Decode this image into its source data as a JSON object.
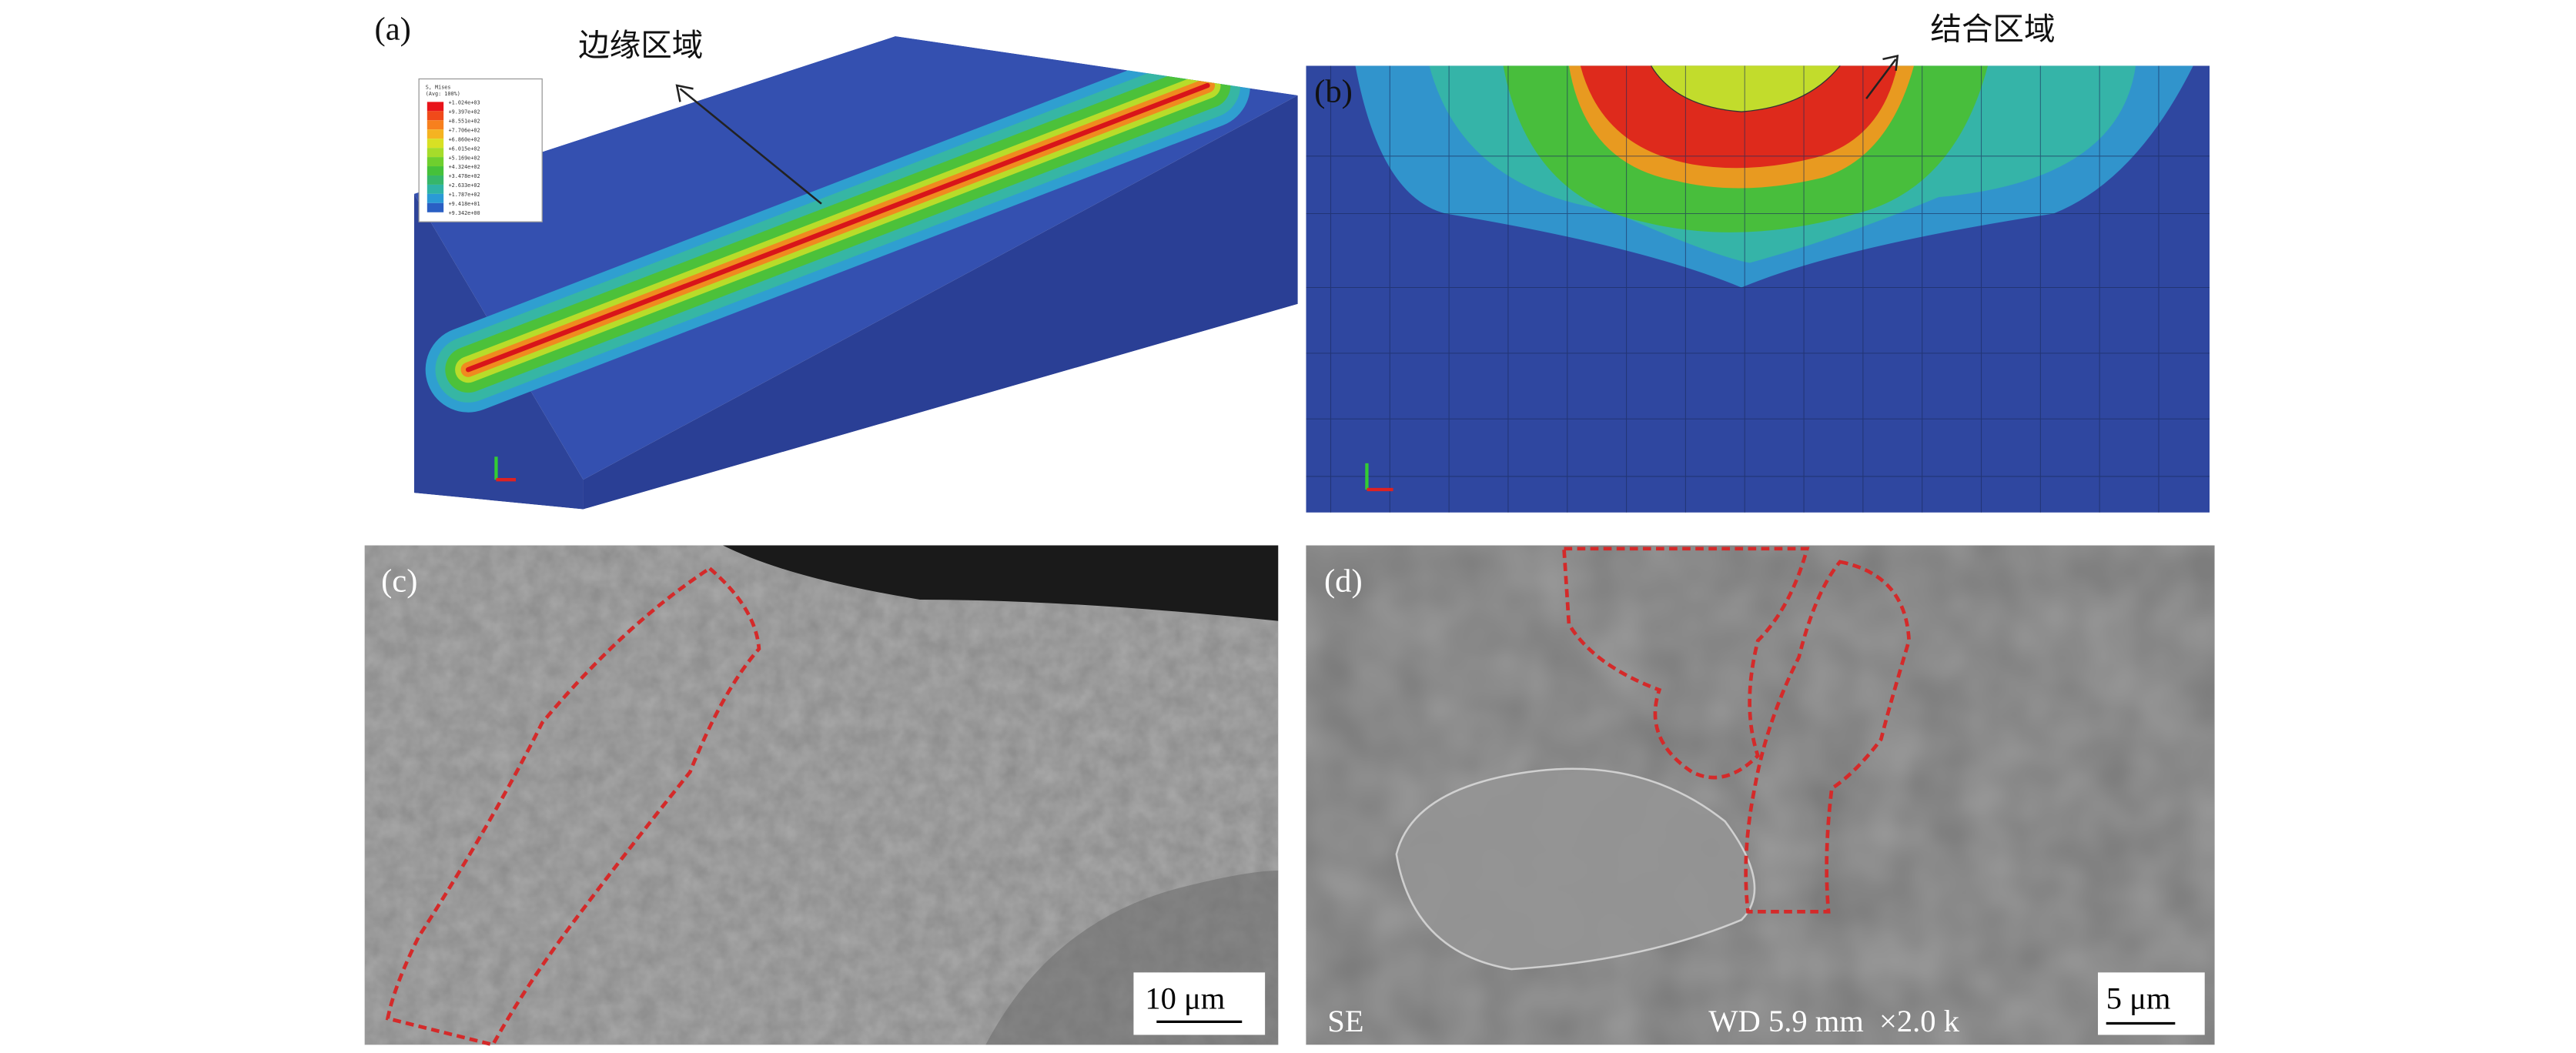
{
  "panels": {
    "a": {
      "label": "(a)",
      "annotation": "边缘区域",
      "legend": {
        "title": "S, Mises",
        "subtitle": "(Avg: 100%)",
        "values": [
          "+1.024e+03",
          "+9.397e+02",
          "+8.551e+02",
          "+7.706e+02",
          "+6.860e+02",
          "+6.015e+02",
          "+5.169e+02",
          "+4.324e+02",
          "+3.478e+02",
          "+2.633e+02",
          "+1.787e+02",
          "+9.418e+01",
          "+9.342e+00"
        ],
        "colors": [
          "#e8141a",
          "#f04a1a",
          "#f7801e",
          "#f5b321",
          "#d8e024",
          "#a6dc2a",
          "#6fcf2e",
          "#45c13a",
          "#36b66a",
          "#2fb3a6",
          "#2a9ad6",
          "#2a5fc4",
          "#2b3f9c"
        ]
      }
    },
    "b": {
      "label": "(b)",
      "annotation": "结合区域"
    },
    "c": {
      "label": "(c)",
      "scale_bar": "10 μm"
    },
    "d": {
      "label": "(d)",
      "detector": "SE",
      "info": "WD 5.9 mm  ×2.0 k",
      "scale_bar": "5 μm"
    }
  },
  "colors": {
    "outline": "#d42a2a",
    "substrate": "#2f47a0",
    "sem_gray": "#7a7a7a"
  }
}
